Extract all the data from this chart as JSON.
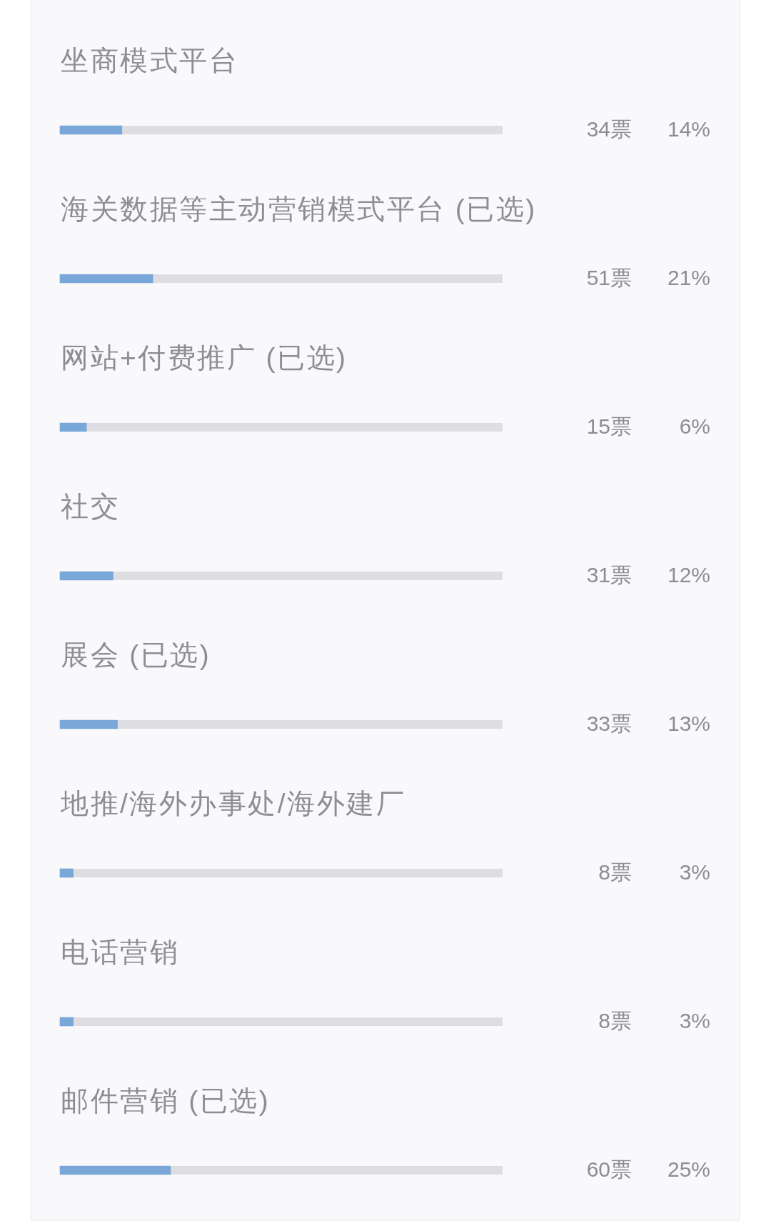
{
  "chart_data": {
    "type": "bar",
    "orientation": "horizontal",
    "categories": [
      "坐商模式平台",
      "海关数据等主动营销模式平台 (已选)",
      "网站+付费推广 (已选)",
      "社交",
      "展会 (已选)",
      "地推/海外办事处/海外建厂",
      "电话营销",
      "邮件营销 (已选)"
    ],
    "values": [
      14,
      21,
      6,
      12,
      13,
      3,
      3,
      25
    ],
    "value_labels": [
      "14%",
      "21%",
      "6%",
      "12%",
      "13%",
      "3%",
      "3%",
      "25%"
    ],
    "color": "#79a7d8",
    "xlim": [
      0,
      100
    ],
    "tick_labels": "y",
    "annotations": [
      "34票",
      "51票",
      "15票",
      "31票",
      "33票",
      "8票",
      "8票",
      "60票"
    ]
  }
}
